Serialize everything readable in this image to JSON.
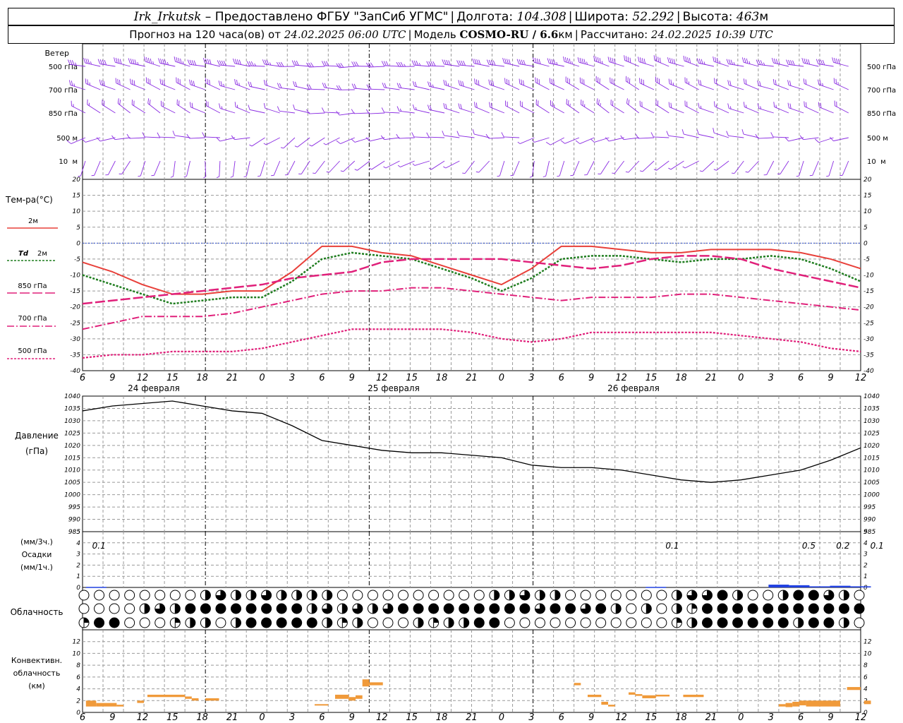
{
  "header": {
    "station": "Irk_Irkutsk",
    "dash": "–",
    "provider": "Предоставлено ФГБУ \"ЗапСиб УГМС\"",
    "lon_label": "Долгота:",
    "lon": "104.308",
    "lat_label": "Широта:",
    "lat": "52.292",
    "alt_label": "Высота:",
    "alt": "463",
    "alt_unit": "м",
    "forecast_prefix": "Прогноз на 120 часа(ов) от",
    "forecast_start": "24.02.2025 06:00 UTC",
    "model_label": "Модель",
    "model": "COSMO-RU / 6.6",
    "model_unit": "км",
    "calc_label": "Рассчитано:",
    "calc_time": "24.02.2025 10:39 UTC"
  },
  "chart_data": [
    {
      "type": "line",
      "panel": "temperature",
      "ylabel": "Тем-ра(°C)",
      "ylim": [
        -40,
        20
      ],
      "yticks": [
        -40,
        -35,
        -30,
        -25,
        -20,
        -15,
        -10,
        -5,
        0,
        5,
        10,
        15,
        20
      ],
      "x_hours_utc": [
        6,
        9,
        12,
        15,
        18,
        21,
        0,
        3,
        6,
        9,
        12,
        15,
        18,
        21,
        0,
        3,
        6,
        9,
        12,
        15,
        18,
        21,
        0,
        3,
        6,
        9,
        12
      ],
      "day_labels": [
        "24 февраля",
        "25 февраля",
        "26 февраля"
      ],
      "series": [
        {
          "name": "2м",
          "color": "#e8403a",
          "values": [
            -6,
            -9,
            -13,
            -16,
            -16,
            -15,
            -15,
            -9,
            -1,
            -1,
            -3,
            -4,
            -7,
            -10,
            -13,
            -8,
            -1,
            -1,
            -2,
            -3,
            -3,
            -2,
            -2,
            -2,
            -3,
            -5,
            -8
          ]
        },
        {
          "name": "Td 2м",
          "color": "#1f7d1f",
          "values": [
            -10,
            -13,
            -16,
            -19,
            -18,
            -17,
            -17,
            -12,
            -5,
            -3,
            -4,
            -5,
            -8,
            -11,
            -15,
            -11,
            -5,
            -4,
            -4,
            -5,
            -6,
            -5,
            -5,
            -4,
            -5,
            -8,
            -12
          ]
        },
        {
          "name": "850 гПа",
          "color": "#e0207a",
          "values": [
            -19,
            -18,
            -17,
            -16,
            -15,
            -14,
            -13,
            -11,
            -10,
            -9,
            -6,
            -5,
            -5,
            -5,
            -5,
            -6,
            -7,
            -8,
            -7,
            -5,
            -4,
            -4,
            -5,
            -8,
            -10,
            -12,
            -14
          ]
        },
        {
          "name": "700 гПа",
          "color": "#e0207a",
          "values": [
            -27,
            -25,
            -23,
            -23,
            -23,
            -22,
            -20,
            -18,
            -16,
            -15,
            -15,
            -14,
            -14,
            -15,
            -16,
            -17,
            -18,
            -17,
            -17,
            -17,
            -16,
            -16,
            -17,
            -18,
            -19,
            -20,
            -21
          ]
        },
        {
          "name": "500 гПа",
          "color": "#e0207a",
          "values": [
            -36,
            -35,
            -35,
            -34,
            -34,
            -34,
            -33,
            -31,
            -29,
            -27,
            -27,
            -27,
            -27,
            -28,
            -30,
            -31,
            -30,
            -28,
            -28,
            -28,
            -28,
            -28,
            -29,
            -30,
            -31,
            -33,
            -34
          ]
        }
      ]
    },
    {
      "type": "line",
      "panel": "pressure",
      "ylabel": "Давление",
      "ylabel2": "(гПа)",
      "ylim": [
        985,
        1040
      ],
      "yticks": [
        985,
        990,
        995,
        1000,
        1005,
        1010,
        1015,
        1020,
        1025,
        1030,
        1035,
        1040
      ],
      "series": [
        {
          "name": "",
          "color": "#000000",
          "values": [
            1034,
            1036,
            1037,
            1038,
            1036,
            1034,
            1033,
            1028,
            1022,
            1020,
            1018,
            1017,
            1017,
            1016,
            1015,
            1012,
            1011,
            1011,
            1010,
            1008,
            1006,
            1005,
            1006,
            1008,
            1010,
            1014,
            1019
          ]
        }
      ]
    },
    {
      "type": "bar",
      "panel": "precipitation",
      "ylabel": "(мм/3ч.)",
      "ylabel2": "Осадки",
      "ylabel3": "(мм/1ч.)",
      "ylim": [
        0,
        5
      ],
      "yticks": [
        0,
        1,
        2,
        3,
        4,
        5
      ],
      "color": "#2040e0",
      "annotations": [
        {
          "hour": 1,
          "text": "0.1"
        },
        {
          "hour": 85,
          "text": "0.1"
        },
        {
          "hour": 105,
          "text": "0.5"
        },
        {
          "hour": 110,
          "text": "0.2"
        },
        {
          "hour": 115,
          "text": "0.1"
        }
      ],
      "bars": [
        {
          "hour": 2,
          "value": 0.05
        },
        {
          "hour": 84,
          "value": 0.05
        },
        {
          "hour": 102,
          "value": 0.25
        },
        {
          "hour": 105,
          "value": 0.2
        },
        {
          "hour": 108,
          "value": 0.1
        },
        {
          "hour": 111,
          "value": 0.15
        },
        {
          "hour": 114,
          "value": 0.1
        }
      ]
    },
    {
      "type": "bar",
      "panel": "convective",
      "ylabel": "Конвективн.",
      "ylabel2": "облачность",
      "ylabel3": "(км)",
      "ylim": [
        0,
        14
      ],
      "yticks": [
        0,
        2,
        4,
        6,
        8,
        10,
        12
      ],
      "color": "#f09a3a",
      "segments": [
        {
          "h0": 0.5,
          "h1": 2,
          "lo": 1.0,
          "hi": 2.0
        },
        {
          "h0": 2,
          "h1": 5,
          "lo": 1.0,
          "hi": 1.6
        },
        {
          "h0": 5,
          "h1": 6,
          "lo": 1.0,
          "hi": 1.3
        },
        {
          "h0": 8,
          "h1": 9,
          "lo": 1.6,
          "hi": 2.0
        },
        {
          "h0": 9.5,
          "h1": 15,
          "lo": 2.6,
          "hi": 3.0
        },
        {
          "h0": 15,
          "h1": 16,
          "lo": 2.3,
          "hi": 2.7
        },
        {
          "h0": 16,
          "h1": 17,
          "lo": 2.0,
          "hi": 2.4
        },
        {
          "h0": 18,
          "h1": 20,
          "lo": 2.0,
          "hi": 2.4
        },
        {
          "h0": 34,
          "h1": 36,
          "lo": 1.2,
          "hi": 1.4
        },
        {
          "h0": 37,
          "h1": 39,
          "lo": 2.3,
          "hi": 3.0
        },
        {
          "h0": 39,
          "h1": 40,
          "lo": 2.0,
          "hi": 2.6
        },
        {
          "h0": 40,
          "h1": 41,
          "lo": 2.3,
          "hi": 2.9
        },
        {
          "h0": 41,
          "h1": 42,
          "lo": 4.4,
          "hi": 5.6
        },
        {
          "h0": 42,
          "h1": 44,
          "lo": 4.6,
          "hi": 5.1
        },
        {
          "h0": 72,
          "h1": 73,
          "lo": 4.6,
          "hi": 5.0
        },
        {
          "h0": 74,
          "h1": 76,
          "lo": 2.6,
          "hi": 3.0
        },
        {
          "h0": 76,
          "h1": 77,
          "lo": 1.3,
          "hi": 1.8
        },
        {
          "h0": 77,
          "h1": 78,
          "lo": 1.0,
          "hi": 1.3
        },
        {
          "h0": 80,
          "h1": 81,
          "lo": 3.0,
          "hi": 3.4
        },
        {
          "h0": 81,
          "h1": 82,
          "lo": 2.8,
          "hi": 3.1
        },
        {
          "h0": 82,
          "h1": 84,
          "lo": 2.4,
          "hi": 2.9
        },
        {
          "h0": 84,
          "h1": 86,
          "lo": 2.7,
          "hi": 3.0
        },
        {
          "h0": 88,
          "h1": 91,
          "lo": 2.6,
          "hi": 3.0
        },
        {
          "h0": 102,
          "h1": 103,
          "lo": 1.0,
          "hi": 1.4
        },
        {
          "h0": 103,
          "h1": 104,
          "lo": 0.9,
          "hi": 1.6
        },
        {
          "h0": 104,
          "h1": 105,
          "lo": 1.0,
          "hi": 1.8
        },
        {
          "h0": 105,
          "h1": 106,
          "lo": 1.2,
          "hi": 2.0
        },
        {
          "h0": 106,
          "h1": 111,
          "lo": 1.0,
          "hi": 2.0
        },
        {
          "h0": 112,
          "h1": 114,
          "lo": 3.8,
          "hi": 4.3
        },
        {
          "h0": 114.5,
          "h1": 115.5,
          "lo": 1.4,
          "hi": 2.0
        }
      ]
    }
  ],
  "wind_panel": {
    "title": "Ветер",
    "levels": [
      "500 гПа",
      "700 гПа",
      "850 гПа",
      "500 м",
      "10  м"
    ],
    "color": "#8a2be2",
    "directions_deg": [
      [
        280,
        282,
        285,
        285,
        280,
        278,
        275,
        272,
        270,
        268,
        270,
        272,
        275,
        278,
        280,
        282,
        285,
        288,
        290,
        290,
        288,
        285,
        282,
        280,
        280,
        282,
        285
      ],
      [
        290,
        292,
        295,
        295,
        292,
        288,
        285,
        280,
        275,
        272,
        275,
        280,
        285,
        290,
        292,
        295,
        298,
        300,
        300,
        298,
        295,
        292,
        290,
        288,
        290,
        292,
        295
      ],
      [
        300,
        305,
        305,
        300,
        295,
        290,
        285,
        280,
        270,
        265,
        270,
        280,
        285,
        290,
        295,
        300,
        302,
        305,
        305,
        300,
        295,
        292,
        290,
        290,
        292,
        295,
        298
      ],
      [
        250,
        260,
        270,
        275,
        270,
        260,
        240,
        230,
        240,
        250,
        260,
        270,
        275,
        280,
        270,
        250,
        245,
        250,
        260,
        270,
        280,
        285,
        280,
        270,
        260,
        255,
        250
      ],
      [
        200,
        210,
        200,
        190,
        180,
        190,
        200,
        210,
        220,
        230,
        240,
        250,
        240,
        220,
        200,
        190,
        200,
        210,
        220,
        230,
        240,
        230,
        220,
        210,
        200,
        200,
        210
      ]
    ],
    "speeds_kt": [
      [
        35,
        40,
        45,
        45,
        40,
        38,
        35,
        32,
        30,
        30,
        32,
        35,
        38,
        40,
        42,
        42,
        45,
        45,
        42,
        40,
        38,
        35,
        35,
        35,
        38,
        40,
        42
      ],
      [
        25,
        28,
        30,
        30,
        28,
        25,
        22,
        20,
        18,
        18,
        20,
        22,
        25,
        28,
        30,
        30,
        32,
        32,
        30,
        28,
        25,
        22,
        20,
        20,
        22,
        25,
        28
      ],
      [
        15,
        18,
        20,
        20,
        18,
        15,
        12,
        10,
        10,
        10,
        12,
        15,
        18,
        20,
        22,
        22,
        25,
        25,
        22,
        20,
        18,
        15,
        15,
        15,
        18,
        20,
        22
      ],
      [
        8,
        10,
        12,
        12,
        10,
        8,
        7,
        6,
        7,
        8,
        10,
        12,
        12,
        10,
        8,
        7,
        8,
        10,
        12,
        12,
        10,
        8,
        8,
        8,
        10,
        10,
        12
      ],
      [
        4,
        5,
        5,
        6,
        5,
        4,
        3,
        3,
        4,
        5,
        6,
        6,
        5,
        4,
        3,
        3,
        4,
        5,
        6,
        6,
        5,
        4,
        4,
        4,
        5,
        5,
        6
      ]
    ]
  },
  "clouds_panel": {
    "label": "Облачность",
    "row_count": 3,
    "symbols_per_row": 52,
    "fraction_levels": [
      0,
      0.25,
      0.5,
      0.75,
      1
    ],
    "rows_fraction": [
      [
        0,
        0,
        0,
        0,
        0,
        0,
        0,
        0,
        0.5,
        0.75,
        0.5,
        0.5,
        0.75,
        0.5,
        0.5,
        0.5,
        0.5,
        0,
        0,
        0,
        0,
        0,
        0,
        0,
        0,
        0,
        0,
        0.5,
        0.5,
        0.75,
        0.5,
        0.5,
        0,
        0,
        0,
        0,
        0,
        0,
        0,
        0.5,
        0.75,
        0.75,
        1,
        0.5,
        0,
        0,
        0.5,
        1,
        1,
        0.75,
        0.5,
        0
      ],
      [
        0,
        0,
        0,
        0,
        0.5,
        0.75,
        0.5,
        1,
        1,
        1,
        1,
        1,
        1,
        1,
        1,
        0.5,
        0.75,
        0.5,
        0.75,
        0.5,
        0.75,
        1,
        1,
        1,
        1,
        1,
        1,
        1,
        1,
        1,
        0.75,
        1,
        1,
        0.75,
        1,
        0.5,
        0,
        0.5,
        0,
        0.5,
        0.25,
        1,
        1,
        1,
        1,
        1,
        1,
        1,
        1,
        1,
        1,
        1
      ],
      [
        0.25,
        1,
        1,
        0,
        0,
        0,
        0.25,
        0.5,
        0.5,
        0,
        0.5,
        1,
        1,
        1,
        1,
        1,
        0.5,
        0.25,
        0.5,
        0,
        0,
        0,
        0.5,
        0.25,
        0.5,
        0.5,
        1,
        1,
        0,
        0,
        0,
        0,
        0,
        0,
        0,
        0,
        0,
        0,
        0,
        0.25,
        0.5,
        1,
        1,
        1,
        1,
        1,
        1,
        0.5,
        1,
        1,
        0.5,
        0
      ]
    ]
  },
  "legend": {
    "t2m": "2м",
    "td_prefix": "Td",
    "td_suffix": "2м",
    "p850": "850 гПа",
    "p700": "700 гПа",
    "p500": "500 гПа"
  }
}
